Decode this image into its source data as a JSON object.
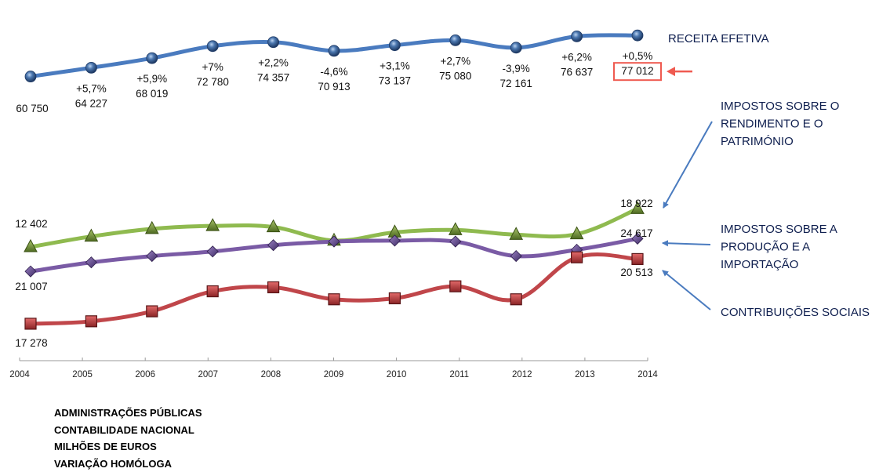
{
  "chart_data": {
    "type": "line",
    "title": "",
    "xlabel": "",
    "ylabel": "",
    "grid": false,
    "x": [
      "2004",
      "2005",
      "2006",
      "2007",
      "2008",
      "2009",
      "2010",
      "2011",
      "2012",
      "2013",
      "2014"
    ],
    "series": [
      {
        "name": "RECEITA EFETIVA",
        "color": "#4a7bbf",
        "marker": "sphere",
        "values": [
          60750,
          64227,
          68019,
          72780,
          74357,
          70913,
          73137,
          75080,
          72161,
          76637,
          77012
        ],
        "value_labels": [
          "60 750",
          "64 227",
          "68 019",
          "72 780",
          "74 357",
          "70 913",
          "73 137",
          "75 080",
          "72 161",
          "76 637",
          "77 012"
        ],
        "change_labels": [
          "",
          "+5,7%",
          "+5,9%",
          "+7%",
          "+2,2%",
          "-4,6%",
          "+3,1%",
          "+2,7%",
          "-3,9%",
          "+6,2%",
          "+0,5%"
        ]
      },
      {
        "name": "IMPOSTOS SOBRE O RENDIMENTO E O PATRIMÓNIO",
        "legend_lines": [
          "IMPOSTOS SOBRE O",
          "RENDIMENTO E O",
          "PATRIMÓNIO"
        ],
        "color": "#8fba4f",
        "marker": "triangle",
        "start_label": "12 402",
        "end_label": "18 922",
        "values": [
          12402,
          14200,
          15500,
          16000,
          15800,
          13500,
          14900,
          15300,
          14500,
          14600,
          18922
        ]
      },
      {
        "name": "IMPOSTOS SOBRE A PRODUÇÃO E A IMPORTAÇÃO",
        "legend_lines": [
          "IMPOSTOS SOBRE A",
          "PRODUÇÃO E A",
          "IMPORTAÇÃO"
        ],
        "color": "#7a5ba5",
        "marker": "diamond",
        "start_label": "21 007",
        "end_label": "24 617",
        "values": [
          21007,
          22000,
          22700,
          23200,
          23900,
          24300,
          24400,
          24300,
          22700,
          23400,
          24617
        ]
      },
      {
        "name": "CONTRIBUIÇÕES SOCIAIS",
        "legend_lines": [
          "CONTRIBUIÇÕES SOCIAIS"
        ],
        "color": "#c0464a",
        "marker": "square",
        "start_label": "17 278",
        "end_label": "20 513",
        "values": [
          17278,
          17400,
          17900,
          18900,
          19100,
          18500,
          18550,
          19150,
          18500,
          20600,
          20513
        ]
      }
    ],
    "highlight": {
      "label": "77 012",
      "color": "#ef5a50"
    }
  },
  "notes": [
    "ADMINISTRAÇÕES PÚBLICAS",
    "CONTABILIDADE NACIONAL",
    "MILHÕES DE EUROS",
    "VARIAÇÃO HOMÓLOGA"
  ],
  "arrow_color": "#4a7bbf"
}
